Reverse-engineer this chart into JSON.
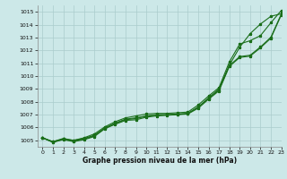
{
  "xlim": [
    -0.5,
    23
  ],
  "ylim": [
    1004.5,
    1015.5
  ],
  "yticks": [
    1005,
    1006,
    1007,
    1008,
    1009,
    1010,
    1011,
    1012,
    1013,
    1014,
    1015
  ],
  "xticks": [
    0,
    1,
    2,
    3,
    4,
    5,
    6,
    7,
    8,
    9,
    10,
    11,
    12,
    13,
    14,
    15,
    16,
    17,
    18,
    19,
    20,
    21,
    22,
    23
  ],
  "xlabel": "Graphe pression niveau de la mer (hPa)",
  "bg_color": "#cce8e8",
  "grid_color": "#aacccc",
  "line_color": "#1a6e1a",
  "line1": [
    1005.2,
    1004.9,
    1005.1,
    1005.0,
    1005.15,
    1005.4,
    1005.95,
    1006.35,
    1006.65,
    1006.75,
    1006.9,
    1007.0,
    1007.0,
    1007.05,
    1007.1,
    1007.6,
    1008.3,
    1009.0,
    1010.85,
    1012.25,
    1013.3,
    1014.05,
    1014.65,
    1014.85
  ],
  "line2": [
    1005.2,
    1004.9,
    1005.15,
    1005.0,
    1005.2,
    1005.5,
    1006.05,
    1006.45,
    1006.75,
    1006.9,
    1007.05,
    1007.1,
    1007.1,
    1007.15,
    1007.2,
    1007.75,
    1008.45,
    1009.1,
    1011.1,
    1012.5,
    1012.75,
    1013.15,
    1014.15,
    1015.1
  ],
  "line3": [
    1005.2,
    1004.85,
    1005.05,
    1004.9,
    1005.05,
    1005.3,
    1005.9,
    1006.25,
    1006.55,
    1006.6,
    1006.8,
    1006.9,
    1006.95,
    1007.0,
    1007.05,
    1007.5,
    1008.2,
    1008.85,
    1010.75,
    1011.45,
    1011.55,
    1012.2,
    1012.95,
    1014.75
  ],
  "line4": [
    1005.2,
    1004.85,
    1005.1,
    1004.95,
    1005.1,
    1005.35,
    1005.95,
    1006.3,
    1006.6,
    1006.7,
    1006.88,
    1006.97,
    1006.98,
    1007.02,
    1007.08,
    1007.57,
    1008.27,
    1008.92,
    1010.82,
    1011.52,
    1011.62,
    1012.27,
    1013.02,
    1014.82
  ]
}
